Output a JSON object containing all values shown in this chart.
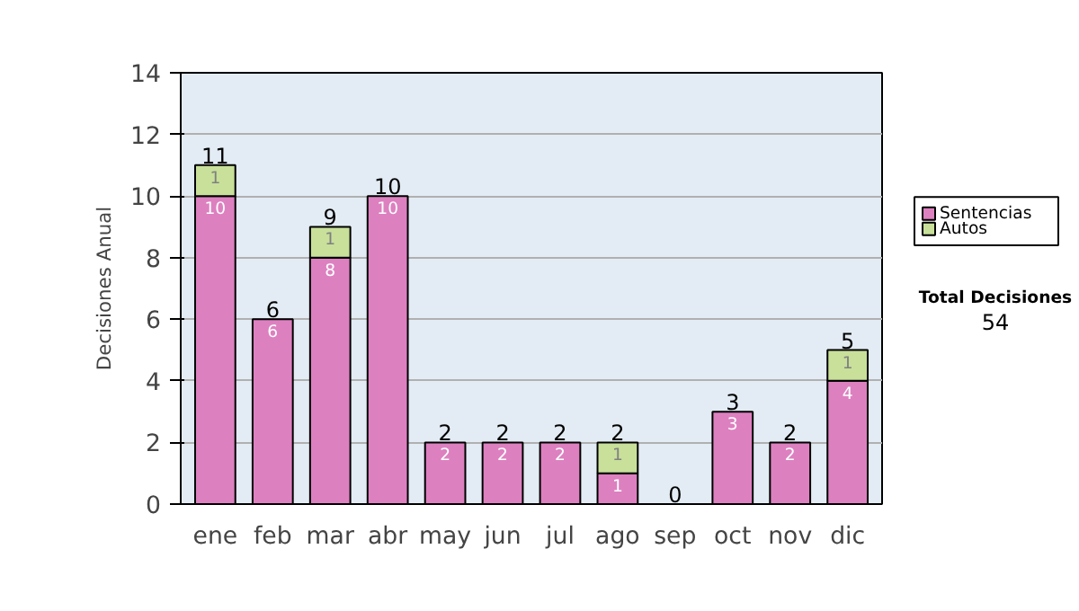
{
  "chart_data": {
    "type": "bar",
    "stacked": true,
    "ylabel": "Decisiones Anual",
    "categories": [
      "ene",
      "feb",
      "mar",
      "abr",
      "may",
      "jun",
      "jul",
      "ago",
      "sep",
      "oct",
      "nov",
      "dic"
    ],
    "series": [
      {
        "name": "Sentencias",
        "color": "#dd80c0",
        "values": [
          10,
          6,
          8,
          10,
          2,
          2,
          2,
          1,
          0,
          3,
          2,
          4
        ],
        "value_labels": [
          "10",
          "6",
          "8",
          "10",
          "2",
          "2",
          "2",
          "1",
          null,
          "3",
          "2",
          "4"
        ]
      },
      {
        "name": "Autos",
        "color": "#c8e09a",
        "values": [
          1,
          0,
          1,
          0,
          0,
          0,
          0,
          1,
          0,
          0,
          0,
          1
        ],
        "value_labels": [
          "1",
          null,
          "1",
          null,
          null,
          null,
          null,
          "1",
          null,
          null,
          null,
          "1"
        ]
      }
    ],
    "totals": [
      "11",
      "6",
      "9",
      "10",
      "2",
      "2",
      "2",
      "2",
      "0",
      "3",
      "2",
      "5"
    ],
    "ylim": [
      0,
      14
    ],
    "yticks": [
      0,
      2,
      4,
      6,
      8,
      10,
      12,
      14
    ],
    "grid": "y",
    "legend": "right",
    "annotations": [
      "Total Decisiones",
      "54"
    ]
  }
}
